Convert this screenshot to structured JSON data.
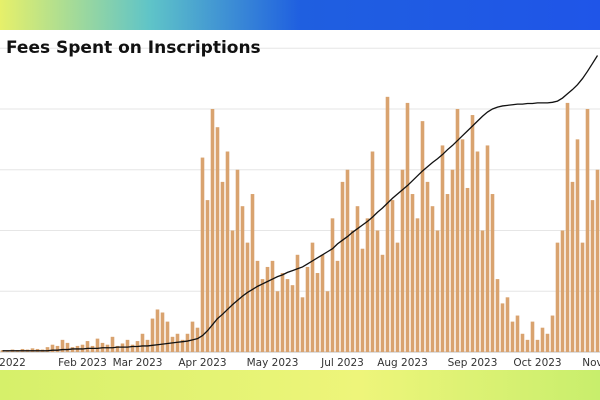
{
  "chart_data": {
    "type": "bar-line",
    "title": "Fees Spent on Inscriptions",
    "categories": [
      null,
      null,
      "2022",
      null,
      null,
      null,
      null,
      null,
      null,
      null,
      null,
      null,
      null,
      null,
      null,
      null,
      "Feb 2023",
      null,
      null,
      null,
      null,
      null,
      null,
      null,
      null,
      null,
      null,
      "Mar 2023",
      null,
      null,
      null,
      null,
      null,
      null,
      null,
      null,
      null,
      null,
      null,
      null,
      "Apr 2023",
      null,
      null,
      null,
      null,
      null,
      null,
      null,
      null,
      null,
      null,
      null,
      null,
      null,
      "May 2023",
      null,
      null,
      null,
      null,
      null,
      null,
      null,
      null,
      null,
      null,
      null,
      null,
      null,
      "Jul 2023",
      null,
      null,
      null,
      null,
      null,
      null,
      null,
      null,
      null,
      null,
      null,
      "Aug 2023",
      null,
      null,
      null,
      null,
      null,
      null,
      null,
      null,
      null,
      null,
      null,
      null,
      null,
      "Sep 2023",
      null,
      null,
      null,
      null,
      null,
      null,
      null,
      null,
      null,
      null,
      null,
      null,
      "Oct 2023",
      null,
      null,
      null,
      null,
      null,
      null,
      null,
      null,
      null,
      null,
      "Nov",
      null
    ],
    "bars": {
      "color": "#d9a36f",
      "values": [
        0.03,
        0.02,
        0.04,
        0.03,
        0.05,
        0.04,
        0.06,
        0.05,
        0.04,
        0.08,
        0.12,
        0.1,
        0.2,
        0.15,
        0.08,
        0.1,
        0.12,
        0.18,
        0.1,
        0.22,
        0.15,
        0.12,
        0.25,
        0.1,
        0.14,
        0.2,
        0.12,
        0.18,
        0.3,
        0.2,
        0.55,
        0.7,
        0.65,
        0.5,
        0.25,
        0.3,
        0.2,
        0.3,
        0.5,
        0.4,
        3.2,
        2.5,
        4.0,
        3.7,
        2.8,
        3.3,
        2.0,
        3.0,
        2.4,
        1.8,
        2.6,
        1.5,
        1.2,
        1.4,
        1.5,
        1.0,
        1.3,
        1.2,
        1.1,
        1.6,
        0.9,
        1.4,
        1.8,
        1.3,
        1.6,
        1.0,
        2.2,
        1.5,
        2.8,
        3.0,
        2.0,
        2.4,
        1.7,
        2.2,
        3.3,
        2.0,
        1.6,
        4.2,
        2.5,
        1.8,
        3.0,
        4.1,
        2.6,
        2.2,
        3.8,
        2.8,
        2.4,
        2.0,
        3.4,
        2.6,
        3.0,
        4.0,
        3.5,
        2.7,
        3.9,
        3.3,
        2.0,
        3.4,
        2.6,
        1.2,
        0.8,
        0.9,
        0.5,
        0.6,
        0.3,
        0.2,
        0.5,
        0.2,
        0.4,
        0.3,
        0.6,
        1.8,
        2.0,
        4.1,
        2.8,
        3.5,
        1.8,
        4.0,
        2.5,
        3.0
      ]
    },
    "line": {
      "color": "#111111",
      "values": [
        0.02,
        0.02,
        0.02,
        0.02,
        0.02,
        0.02,
        0.02,
        0.02,
        0.02,
        0.02,
        0.03,
        0.03,
        0.04,
        0.04,
        0.05,
        0.05,
        0.05,
        0.06,
        0.06,
        0.06,
        0.07,
        0.07,
        0.07,
        0.08,
        0.08,
        0.08,
        0.09,
        0.09,
        0.1,
        0.1,
        0.11,
        0.12,
        0.13,
        0.14,
        0.15,
        0.16,
        0.17,
        0.18,
        0.2,
        0.22,
        0.27,
        0.35,
        0.45,
        0.55,
        0.62,
        0.7,
        0.78,
        0.85,
        0.92,
        0.98,
        1.03,
        1.08,
        1.12,
        1.16,
        1.2,
        1.24,
        1.27,
        1.31,
        1.34,
        1.37,
        1.4,
        1.45,
        1.5,
        1.55,
        1.6,
        1.65,
        1.7,
        1.78,
        1.84,
        1.9,
        1.97,
        2.03,
        2.09,
        2.15,
        2.22,
        2.3,
        2.37,
        2.45,
        2.53,
        2.6,
        2.67,
        2.74,
        2.82,
        2.9,
        2.98,
        3.05,
        3.12,
        3.18,
        3.25,
        3.33,
        3.4,
        3.48,
        3.56,
        3.64,
        3.72,
        3.8,
        3.88,
        3.95,
        4.0,
        4.03,
        4.05,
        4.06,
        4.07,
        4.08,
        4.08,
        4.09,
        4.09,
        4.1,
        4.1,
        4.1,
        4.11,
        4.13,
        4.18,
        4.25,
        4.32,
        4.4,
        4.5,
        4.62,
        4.75,
        4.88
      ]
    },
    "ylim": [
      0,
      5.3
    ],
    "yticks": [
      0,
      1,
      2,
      3,
      4,
      5
    ],
    "grid": true
  }
}
